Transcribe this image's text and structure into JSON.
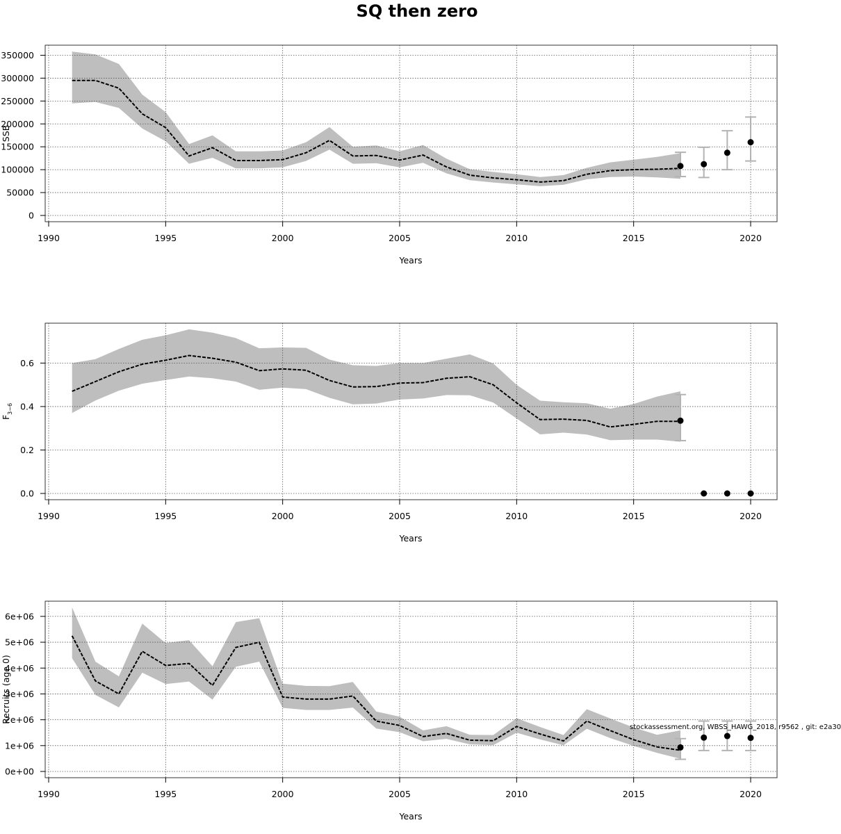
{
  "title": "SQ then zero",
  "credit": "stockassessment.org, WBSS_HAWG_2018, r9562 , git: e2a30",
  "colors": {
    "band": "#bebebe",
    "line": "#000000",
    "errorbar": "#b3b3b3",
    "grid": "#555555"
  },
  "chart_data": [
    {
      "type": "line",
      "ylabel": "SSB",
      "xlabel": "Years",
      "xlim": [
        1990,
        2020
      ],
      "ylim": [
        0,
        350000
      ],
      "xticks": [
        1990,
        1995,
        2000,
        2005,
        2010,
        2015,
        2020
      ],
      "yticks": [
        0,
        50000,
        100000,
        150000,
        200000,
        250000,
        300000,
        350000
      ],
      "ytick_labels": [
        "0",
        "50000",
        "100000",
        "150000",
        "200000",
        "250000",
        "300000",
        "350000"
      ],
      "grid": true,
      "x": [
        1991,
        1992,
        1993,
        1994,
        1995,
        1996,
        1997,
        1998,
        1999,
        2000,
        2001,
        2002,
        2003,
        2004,
        2005,
        2006,
        2007,
        2008,
        2009,
        2010,
        2011,
        2012,
        2013,
        2014,
        2015,
        2016,
        2017
      ],
      "estimate": [
        295000,
        295000,
        278000,
        222000,
        192000,
        130000,
        148000,
        120000,
        120000,
        122000,
        137000,
        164000,
        130000,
        131000,
        121000,
        132000,
        106000,
        88000,
        82000,
        78000,
        73000,
        76000,
        90000,
        98000,
        100000,
        101000,
        103000
      ],
      "lower": [
        245000,
        248000,
        235000,
        190000,
        162000,
        113000,
        126000,
        103000,
        103000,
        105000,
        119000,
        144000,
        113000,
        114000,
        105000,
        115000,
        92000,
        77000,
        72000,
        68000,
        64000,
        67000,
        79000,
        84000,
        85000,
        83000,
        80000
      ],
      "upper": [
        358000,
        352000,
        331000,
        264000,
        226000,
        156000,
        175000,
        140000,
        140000,
        142000,
        160000,
        193000,
        150000,
        153000,
        140000,
        154000,
        124000,
        101000,
        95000,
        90000,
        84000,
        88000,
        104000,
        116000,
        122000,
        128000,
        136000
      ],
      "forecast": [
        {
          "year": 2017,
          "value": 108000,
          "low": 85000,
          "high": 138000
        },
        {
          "year": 2018,
          "value": 112000,
          "low": 83000,
          "high": 149000
        },
        {
          "year": 2019,
          "value": 137000,
          "low": 100000,
          "high": 185000
        },
        {
          "year": 2020,
          "value": 160000,
          "low": 119000,
          "high": 215000
        }
      ]
    },
    {
      "type": "line",
      "ylabel": "F",
      "ylabel_sub": "3−6",
      "xlabel": "Years",
      "xlim": [
        1990,
        2020
      ],
      "ylim": [
        0,
        0.75
      ],
      "xticks": [
        1990,
        1995,
        2000,
        2005,
        2010,
        2015,
        2020
      ],
      "yticks": [
        0,
        0.2,
        0.4,
        0.6
      ],
      "ytick_labels": [
        "0.0",
        "0.2",
        "0.4",
        "0.6"
      ],
      "grid": true,
      "x": [
        1991,
        1992,
        1993,
        1994,
        1995,
        1996,
        1997,
        1998,
        1999,
        2000,
        2001,
        2002,
        2003,
        2004,
        2005,
        2006,
        2007,
        2008,
        2009,
        2010,
        2011,
        2012,
        2013,
        2014,
        2015,
        2016,
        2017
      ],
      "estimate": [
        0.47,
        0.515,
        0.56,
        0.595,
        0.613,
        0.635,
        0.622,
        0.604,
        0.565,
        0.573,
        0.567,
        0.52,
        0.49,
        0.492,
        0.508,
        0.51,
        0.53,
        0.537,
        0.5,
        0.417,
        0.34,
        0.342,
        0.336,
        0.306,
        0.318,
        0.332,
        0.332
      ],
      "lower": [
        0.37,
        0.428,
        0.473,
        0.505,
        0.522,
        0.538,
        0.53,
        0.515,
        0.477,
        0.487,
        0.48,
        0.44,
        0.41,
        0.414,
        0.432,
        0.437,
        0.453,
        0.452,
        0.418,
        0.345,
        0.272,
        0.28,
        0.271,
        0.245,
        0.248,
        0.248,
        0.238
      ],
      "upper": [
        0.6,
        0.618,
        0.665,
        0.707,
        0.728,
        0.755,
        0.74,
        0.715,
        0.668,
        0.672,
        0.67,
        0.616,
        0.59,
        0.587,
        0.6,
        0.6,
        0.62,
        0.64,
        0.598,
        0.5,
        0.427,
        0.42,
        0.415,
        0.39,
        0.412,
        0.446,
        0.47
      ],
      "forecast": [
        {
          "year": 2017,
          "value": 0.335,
          "low": 0.243,
          "high": 0.455
        },
        {
          "year": 2018,
          "value": 0.0
        },
        {
          "year": 2019,
          "value": 0.0
        },
        {
          "year": 2020,
          "value": 0.0
        }
      ]
    },
    {
      "type": "line",
      "ylabel": "Recruits (age 0)",
      "xlabel": "Years",
      "xlim": [
        1990,
        2020
      ],
      "ylim": [
        0,
        6400000
      ],
      "xticks": [
        1990,
        1995,
        2000,
        2005,
        2010,
        2015,
        2020
      ],
      "yticks": [
        0,
        1000000,
        2000000,
        3000000,
        4000000,
        5000000,
        6000000
      ],
      "ytick_labels": [
        "0e+00",
        "1e+06",
        "2e+06",
        "3e+06",
        "4e+06",
        "5e+06",
        "6e+06"
      ],
      "grid": true,
      "x": [
        1991,
        1992,
        1993,
        1994,
        1995,
        1996,
        1997,
        1998,
        1999,
        2000,
        2001,
        2002,
        2003,
        2004,
        2005,
        2006,
        2007,
        2008,
        2009,
        2010,
        2011,
        2012,
        2013,
        2014,
        2015,
        2016,
        2017
      ],
      "estimate": [
        5250000,
        3500000,
        3000000,
        4650000,
        4100000,
        4180000,
        3330000,
        4800000,
        5000000,
        2880000,
        2800000,
        2800000,
        2920000,
        1950000,
        1780000,
        1350000,
        1470000,
        1210000,
        1190000,
        1740000,
        1450000,
        1180000,
        1950000,
        1580000,
        1230000,
        950000,
        820000
      ],
      "lower": [
        4380000,
        2960000,
        2480000,
        3820000,
        3380000,
        3480000,
        2780000,
        4050000,
        4250000,
        2460000,
        2380000,
        2380000,
        2470000,
        1660000,
        1520000,
        1170000,
        1260000,
        1050000,
        1020000,
        1500000,
        1240000,
        1010000,
        1650000,
        1290000,
        990000,
        720000,
        490000
      ],
      "upper": [
        6350000,
        4250000,
        3680000,
        5720000,
        4970000,
        5080000,
        4070000,
        5780000,
        5930000,
        3400000,
        3310000,
        3300000,
        3460000,
        2320000,
        2120000,
        1590000,
        1750000,
        1420000,
        1410000,
        2060000,
        1720000,
        1410000,
        2410000,
        2050000,
        1700000,
        1420000,
        1590000
      ],
      "forecast": [
        {
          "year": 2017,
          "value": 930000,
          "low": 470000,
          "high": 1270000
        },
        {
          "year": 2018,
          "value": 1310000,
          "low": 810000,
          "high": 1950000
        },
        {
          "year": 2019,
          "value": 1370000,
          "low": 810000,
          "high": 1950000
        },
        {
          "year": 2020,
          "value": 1300000,
          "low": 810000,
          "high": 1950000
        }
      ]
    }
  ]
}
